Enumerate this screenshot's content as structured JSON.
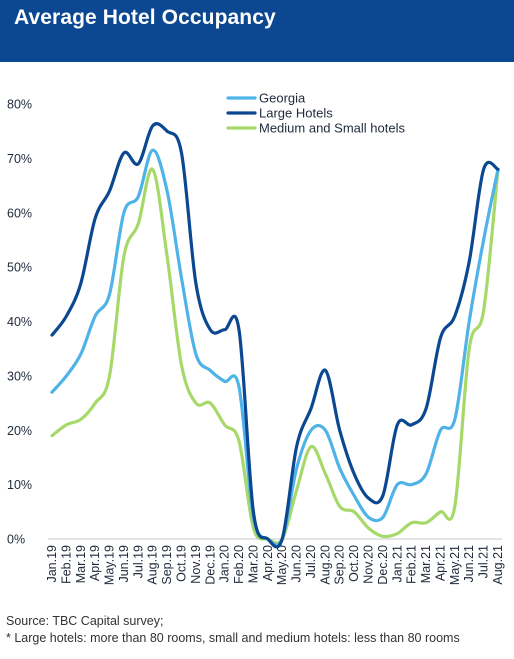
{
  "header": {
    "title": "Average Hotel Occupancy",
    "bg_color": "#0b4891",
    "text_color": "#ffffff"
  },
  "chart_data": {
    "type": "line",
    "title": "Average Hotel Occupancy",
    "xlabel": "",
    "ylabel": "",
    "ylim": [
      0,
      80
    ],
    "yticks": [
      0,
      10,
      20,
      30,
      40,
      50,
      60,
      70,
      80
    ],
    "ytick_labels": [
      "0%",
      "10%",
      "20%",
      "30%",
      "40%",
      "50%",
      "60%",
      "70%",
      "80%"
    ],
    "grid": false,
    "legend_position": "top-center",
    "categories": [
      "Jan.19",
      "Feb.19",
      "Mar.19",
      "Apr.19",
      "May.19",
      "Jun.19",
      "Jul.19",
      "Aug.19",
      "Sep.19",
      "Oct.19",
      "Nov.19",
      "Dec.19",
      "Jan.20",
      "Feb.20",
      "Mar.20",
      "Apr.20",
      "May.20",
      "Jun.20",
      "Jul.20",
      "Aug.20",
      "Sep.20",
      "Oct.20",
      "Nov.20",
      "Dec.20",
      "Jan.21",
      "Feb.21",
      "Mar.21",
      "Apr.21",
      "May.21",
      "Jun.21",
      "Jul.21",
      "Aug.21"
    ],
    "series": [
      {
        "name": "Georgia",
        "color": "#4fb3e8",
        "values": [
          27,
          30,
          34,
          41,
          45,
          60,
          63,
          71.5,
          64,
          48,
          34,
          31,
          29,
          28,
          4,
          0,
          0,
          13,
          20,
          20,
          13,
          8,
          4,
          4,
          10,
          10,
          12,
          20,
          22,
          40,
          55,
          68
        ]
      },
      {
        "name": "Large Hotels",
        "color": "#0b4891",
        "values": [
          37.5,
          41,
          47,
          59,
          64,
          71,
          69,
          76,
          75,
          71,
          47,
          38.5,
          38.5,
          38.5,
          5,
          0,
          0,
          17,
          24,
          31,
          20,
          12,
          7.5,
          8,
          21,
          21,
          24,
          37,
          41,
          51,
          68,
          68
        ]
      },
      {
        "name": "Medium and Small hotels",
        "color": "#a6d96a",
        "values": [
          19,
          21,
          22,
          25,
          30,
          52,
          58,
          68,
          52,
          32,
          25,
          25,
          21,
          18,
          2,
          0,
          0,
          9,
          17,
          12,
          6,
          5,
          2,
          0.5,
          1,
          3,
          3,
          5,
          6,
          35,
          42,
          68
        ]
      }
    ]
  },
  "footer": {
    "source": "Source: TBC Capital survey;",
    "note": "* Large hotels: more than 80 rooms, small and medium hotels: less than 80 rooms"
  }
}
